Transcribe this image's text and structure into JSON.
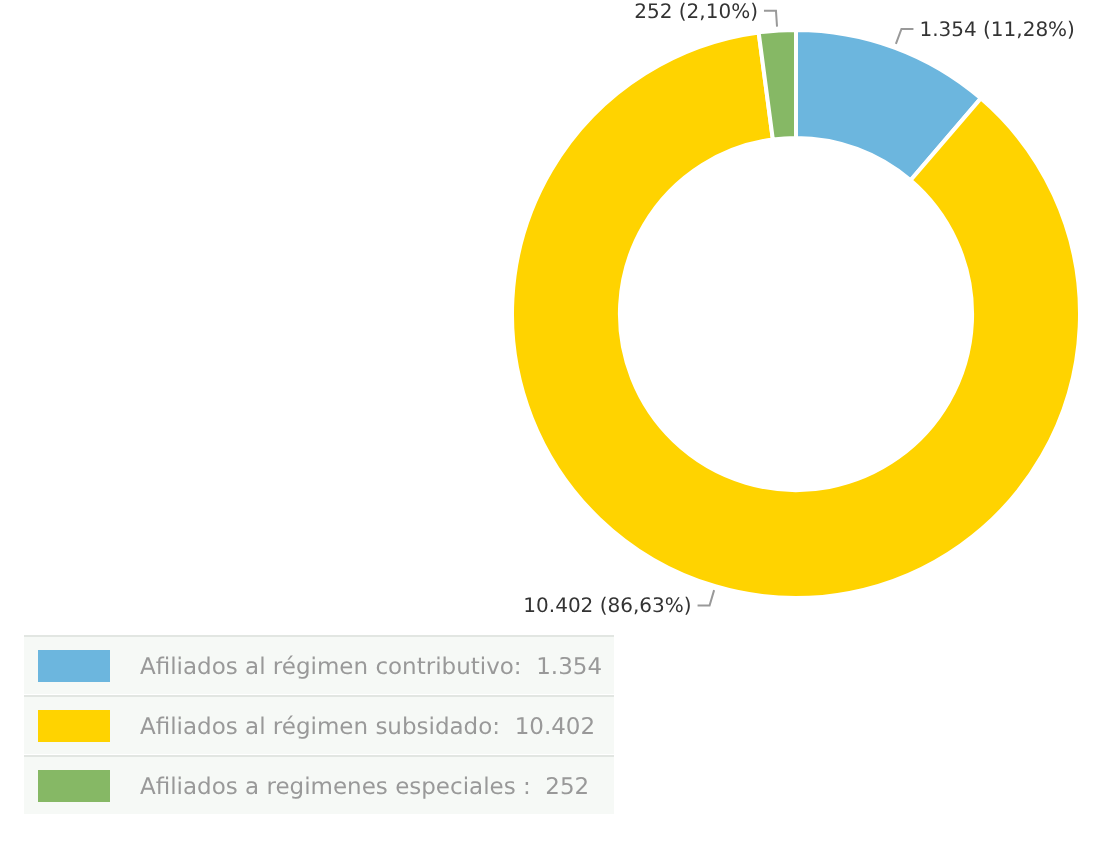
{
  "chart_data": {
    "type": "donut",
    "categories": [
      "Afiliados al régimen contributivo:  1.354",
      "Afiliados al régimen subsidado:  10.402",
      "Afiliados a regimenes especiales :  252"
    ],
    "values": [
      1354,
      10402,
      252
    ],
    "colors": [
      "#6cb6de",
      "#ffd300",
      "#86b865"
    ],
    "value_labels": [
      "1.354 (11,28%)",
      "10.402 (86,63%)",
      "252 (2,10%)"
    ],
    "legend": "bottom left"
  }
}
